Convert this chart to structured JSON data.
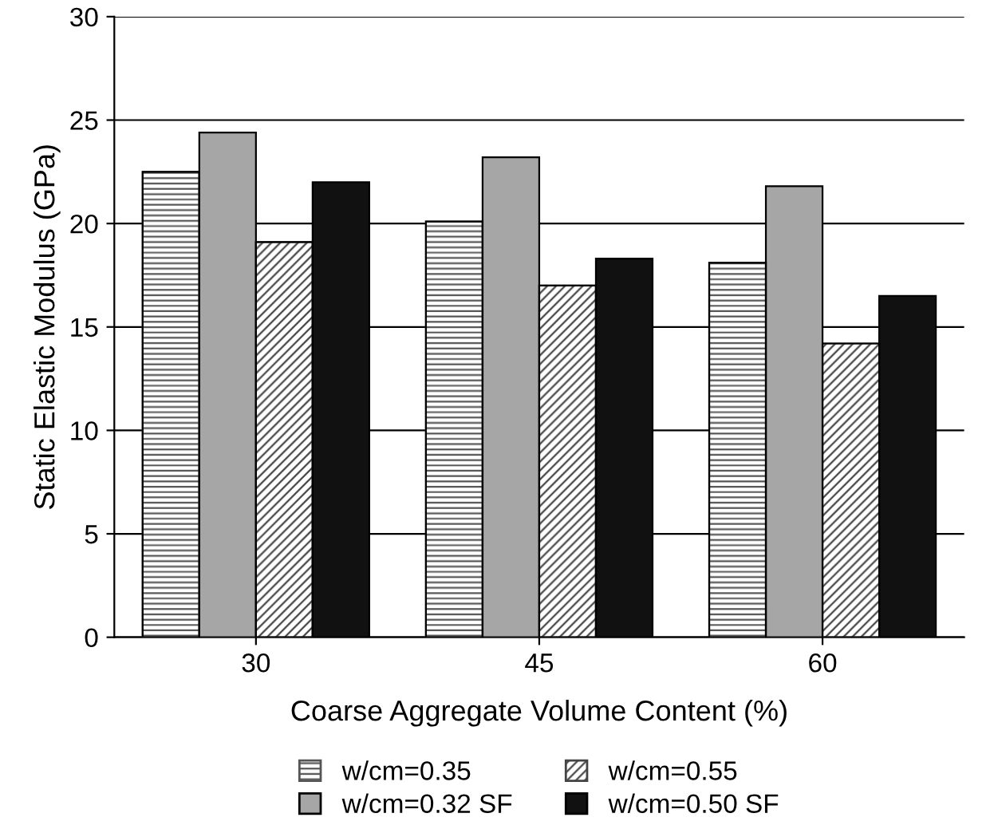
{
  "chart_data": {
    "type": "bar",
    "xlabel": "Coarse Aggregate Volume Content (%)",
    "ylabel": "Static Elastic Modulus (GPa)",
    "categories": [
      "30",
      "45",
      "60"
    ],
    "series": [
      {
        "name": "w/cm=0.35",
        "color": "#555555",
        "values": [
          22.5,
          20.1,
          18.1
        ]
      },
      {
        "name": "w/cm=0.32 SF",
        "color": "#a6a6a6",
        "values": [
          24.4,
          23.2,
          21.8
        ]
      },
      {
        "name": "w/cm=0.55",
        "color": "#444444",
        "values": [
          19.1,
          17.0,
          14.2
        ]
      },
      {
        "name": "w/cm=0.50 SF",
        "color": "#111111",
        "values": [
          22.0,
          18.3,
          16.5
        ]
      }
    ],
    "ylim": [
      0,
      30
    ],
    "yticks": [
      0,
      5,
      10,
      15,
      20,
      25,
      30
    ],
    "grid": "y",
    "legend": "bottom"
  }
}
